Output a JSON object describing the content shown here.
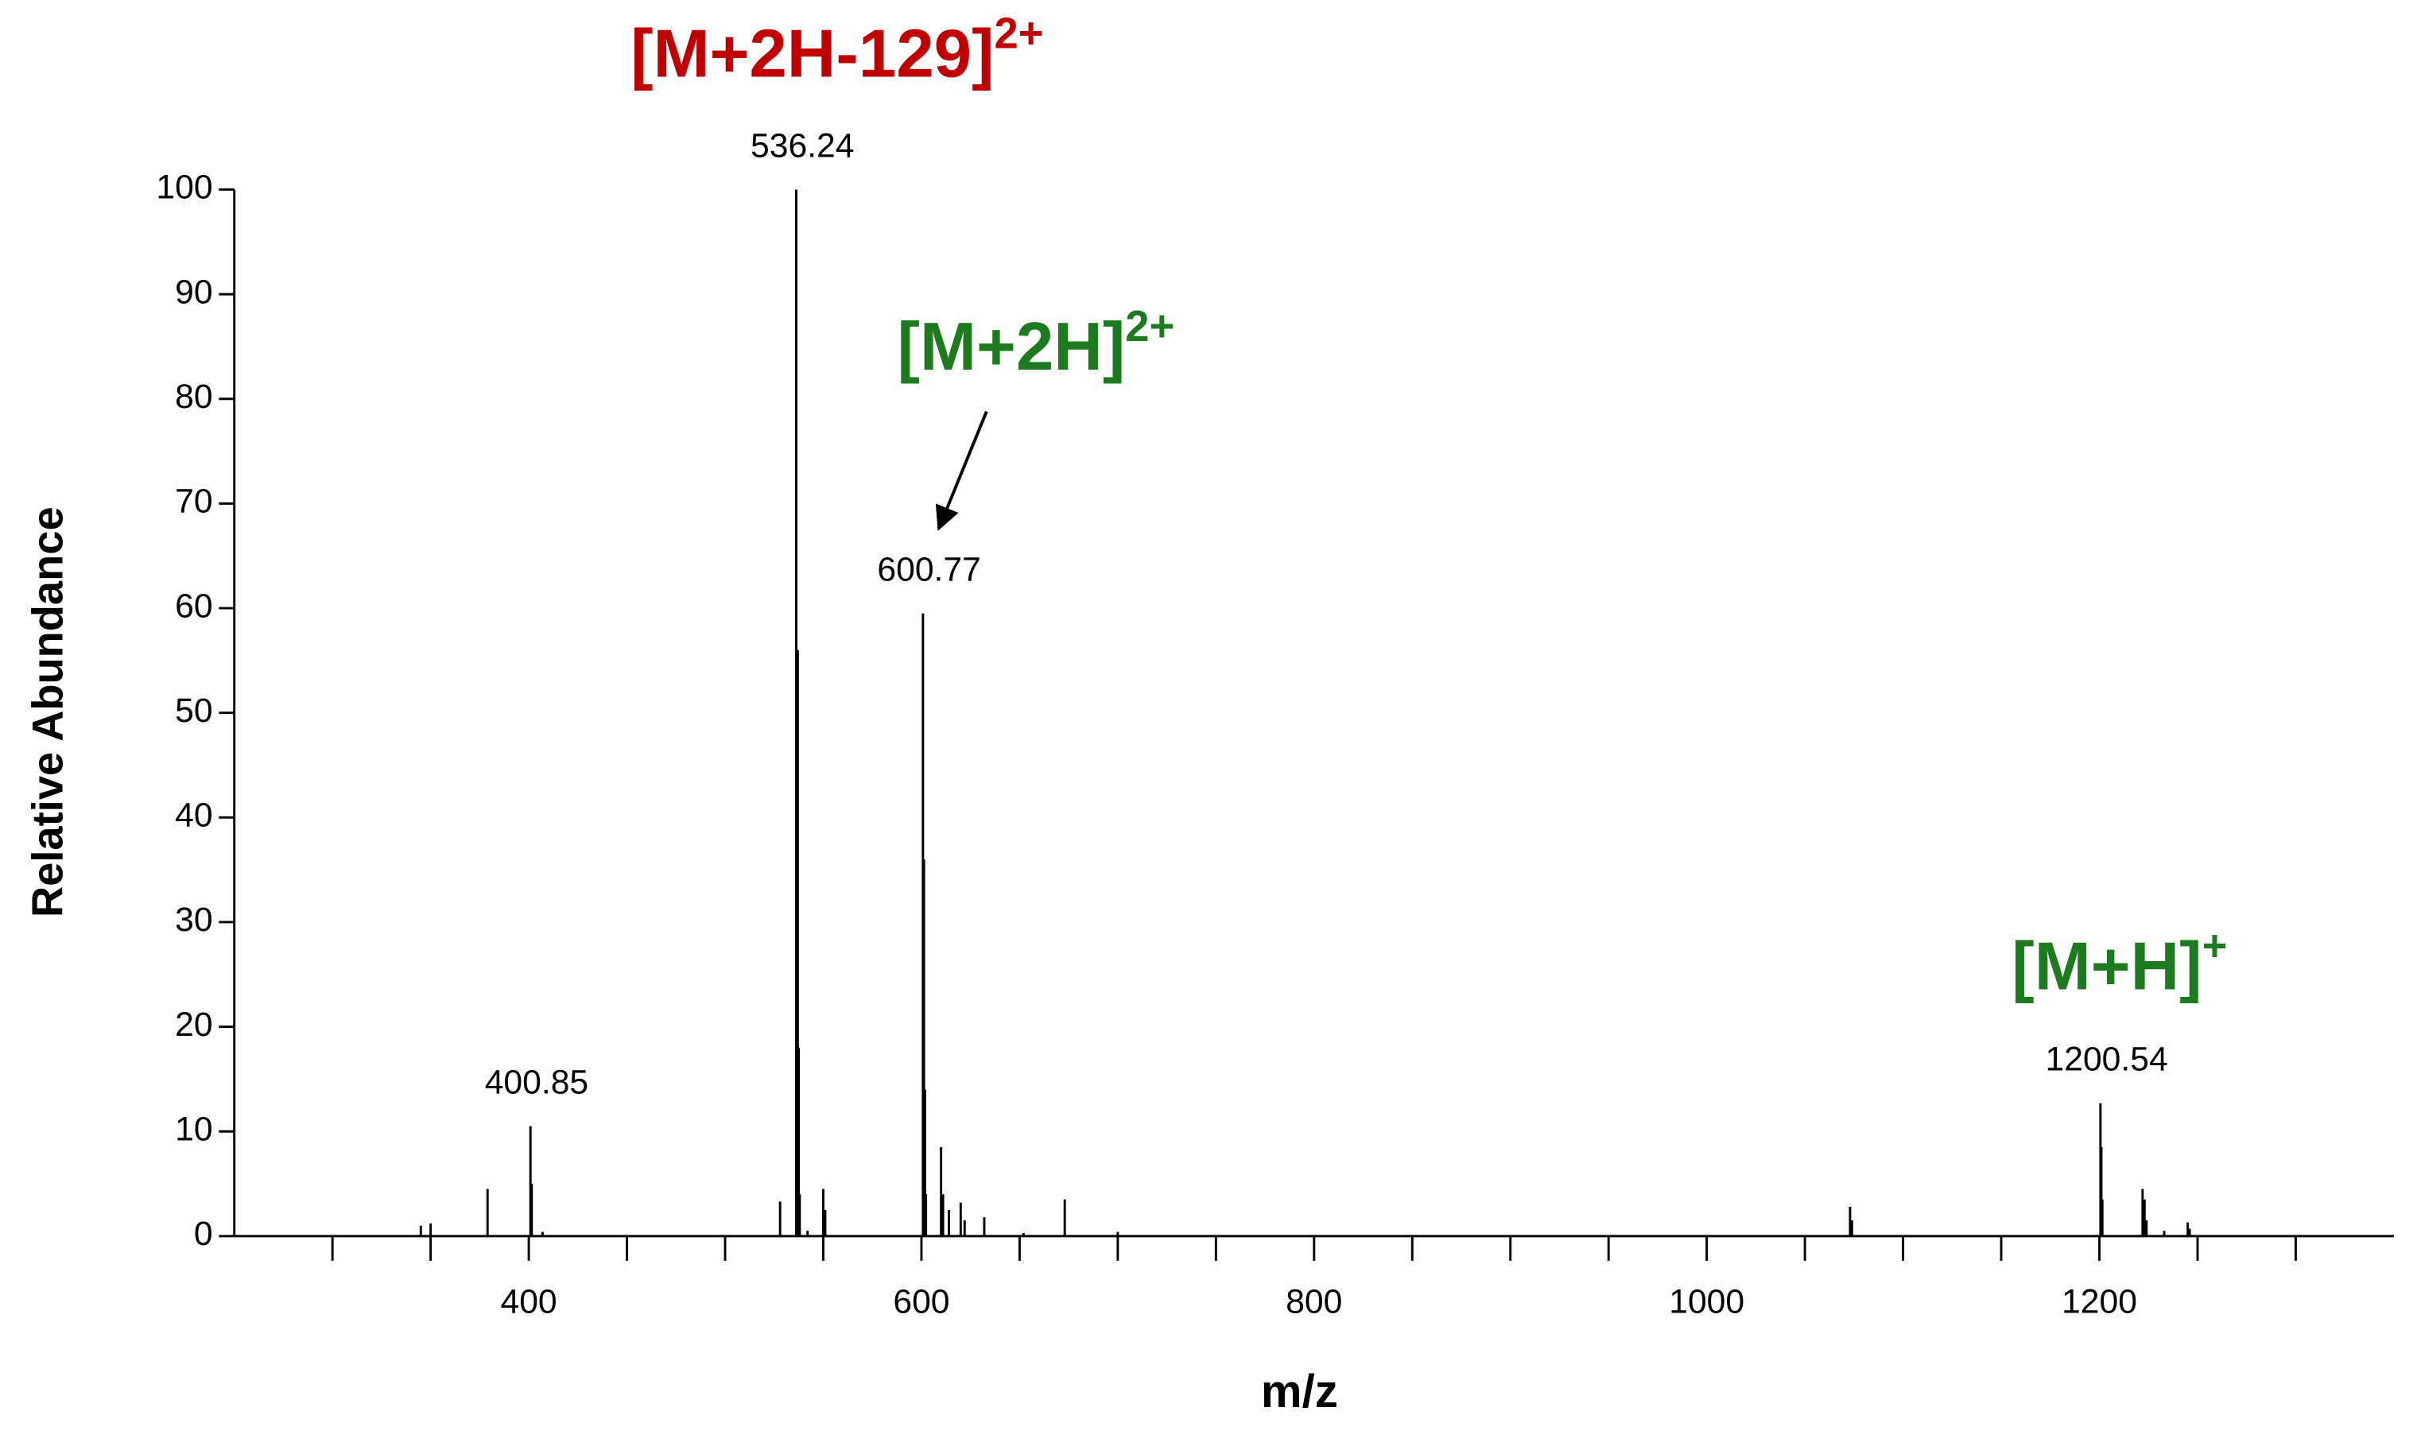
{
  "chart_data": {
    "type": "stem",
    "x_label": "m/z",
    "y_label": "Relative Abundance",
    "x": [
      345,
      350,
      379,
      400.85,
      401.5,
      407,
      528,
      536.24,
      537,
      537.5,
      538,
      542,
      550,
      551,
      600.77,
      601.3,
      601.8,
      602.3,
      610,
      611,
      614,
      620,
      622,
      632,
      652,
      673,
      700,
      1073,
      1074,
      1200.54,
      1201,
      1201.5,
      1222,
      1223,
      1224,
      1233,
      1245,
      1246
    ],
    "values": [
      1,
      1.2,
      4.5,
      10.5,
      5,
      0.4,
      3.3,
      100,
      56,
      18,
      4,
      0.5,
      4.5,
      2.5,
      59.5,
      36,
      14,
      4,
      8.5,
      4,
      2.5,
      3.2,
      1.5,
      1.8,
      0.3,
      3.5,
      0.4,
      2.8,
      1.5,
      12.7,
      8.5,
      3.5,
      4.5,
      3.5,
      1.5,
      0.5,
      1.3,
      0.7
    ],
    "color": "#000000",
    "peak_labels": [
      400.85,
      536.24,
      600.77,
      1200.54
    ],
    "annotations": [
      {
        "text": "[M+2H-129]",
        "charge": "2+",
        "color": "#c00000"
      },
      {
        "text": "[M+2H]",
        "charge": "2+",
        "color": "#1e7a1e"
      },
      {
        "text": "[M+H]",
        "charge": "+",
        "color": "#1e7a1e"
      }
    ],
    "xlim": [
      250,
      1350
    ],
    "xticks": [
      400,
      600,
      800,
      1000,
      1200
    ],
    "xminorticks": [
      300,
      350,
      450,
      500,
      550,
      650,
      700,
      750,
      850,
      900,
      950,
      1050,
      1100,
      1150,
      1250,
      1300
    ],
    "ylim": [
      0,
      100
    ],
    "yticks": [
      0,
      10,
      20,
      30,
      40,
      50,
      60,
      70,
      80,
      90,
      100
    ]
  }
}
